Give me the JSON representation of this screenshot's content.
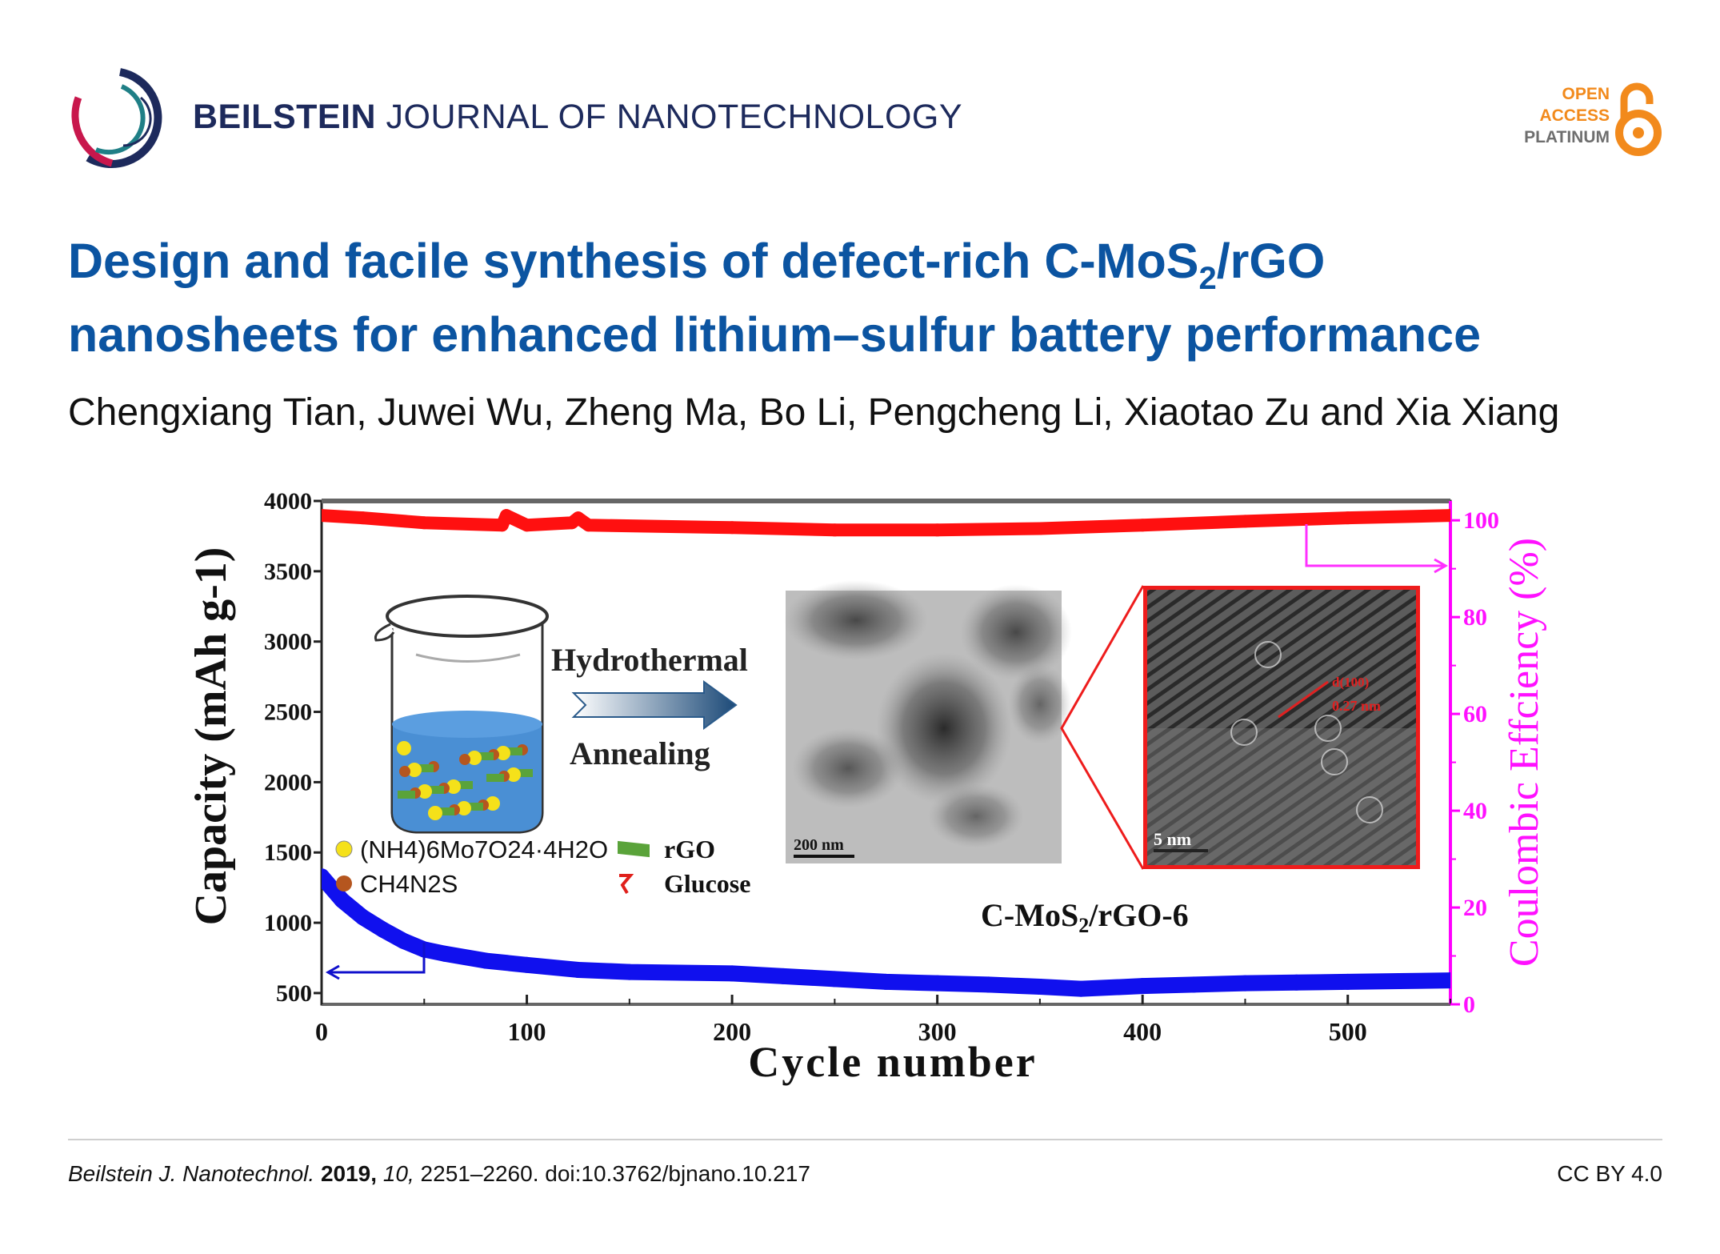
{
  "header": {
    "journal_brand": "BEILSTEIN",
    "journal_rest": "JOURNAL OF NANOTECHNOLOGY",
    "oa_badge": {
      "line1": "OPEN",
      "line2": "ACCESS",
      "line3": "PLATINUM"
    }
  },
  "article": {
    "title_part1": "Design and facile synthesis of defect-rich C-MoS",
    "title_sub": "2",
    "title_part2": "/rGO",
    "title_line2": "nanosheets for enhanced lithium–sulfur battery performance",
    "authors": "Chengxiang Tian, Juwei Wu, Zheng Ma, Bo Li, Pengcheng Li, Xiaotao Zu and Xia Xiang"
  },
  "figure": {
    "hydrothermal": "Hydrothermal",
    "annealing": "Annealing",
    "legend": [
      {
        "label": "(NH4)6Mo7O24·4H2O",
        "color": "#f5e11a"
      },
      {
        "label": "CH4N2S",
        "color": "#b5561f"
      },
      {
        "label": "rGO",
        "color": "#5aa33a"
      },
      {
        "label": "Glucose",
        "color": "#e0201b"
      }
    ],
    "tem_scale": "200 nm",
    "hrtem_scale": "5 nm",
    "hrtem_d": "d(100)",
    "hrtem_spacing": "0.27 nm",
    "sample_label": "C-MoS2/rGO-6"
  },
  "chart_data": {
    "type": "line",
    "xlabel": "Cycle number",
    "ylabel": "Capacity (mAh g-1)",
    "y2label": "Coulombic Effciency (%)",
    "xlim": [
      0,
      550
    ],
    "ylim": [
      420,
      4000
    ],
    "y2lim": [
      0,
      104
    ],
    "xticks": [
      0,
      100,
      200,
      300,
      400,
      500
    ],
    "yticks": [
      500,
      1000,
      1500,
      2000,
      2500,
      3000,
      3500,
      4000
    ],
    "y2ticks": [
      0,
      20,
      40,
      60,
      80,
      100
    ],
    "series": [
      {
        "name": "Capacity",
        "axis": "left",
        "color": "#1010ee",
        "x": [
          0,
          10,
          20,
          30,
          40,
          50,
          60,
          80,
          100,
          125,
          150,
          175,
          200,
          225,
          250,
          275,
          300,
          325,
          350,
          370,
          400,
          425,
          450,
          475,
          500,
          525,
          550
        ],
        "y": [
          1330,
          1160,
          1040,
          950,
          870,
          810,
          780,
          730,
          700,
          665,
          650,
          645,
          640,
          620,
          600,
          580,
          570,
          560,
          545,
          530,
          550,
          560,
          570,
          575,
          580,
          585,
          590
        ]
      },
      {
        "name": "Coulombic efficiency",
        "axis": "right",
        "color": "#ff1010",
        "x": [
          0,
          20,
          50,
          88,
          90,
          100,
          122,
          125,
          130,
          200,
          250,
          300,
          350,
          400,
          450,
          500,
          550
        ],
        "y": [
          101,
          100.5,
          99.5,
          99,
          101,
          99,
          99.5,
          100.5,
          99,
          98.5,
          98,
          98,
          98.3,
          99,
          99.8,
          100.5,
          101
        ]
      }
    ]
  },
  "footer": {
    "journal_abbrev": "Beilstein J. Nanotechnol.",
    "year": "2019,",
    "volume": "10,",
    "pages_doi": "2251–2260. doi:10.3762/bjnano.10.217",
    "license": "CC BY 4.0"
  }
}
